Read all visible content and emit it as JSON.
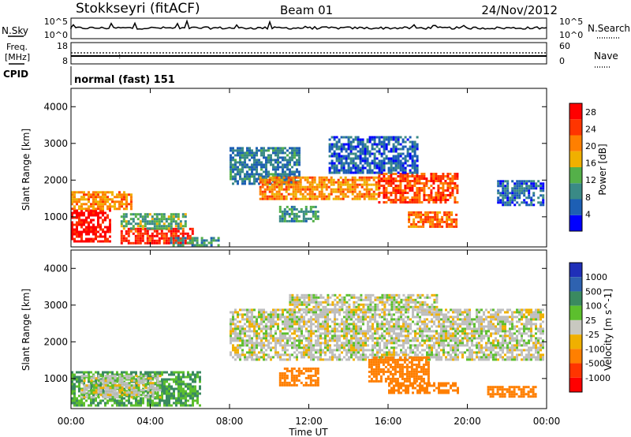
{
  "header": {
    "station": "Stokkseyri (fitACF)",
    "beam": "Beam 01",
    "date": "24/Nov/2012"
  },
  "status_panel": {
    "nsky_label": "N.Sky",
    "nsearch_label": "N.Search",
    "freq_label_line1": "Freq.",
    "freq_label_line2": "[MHz]",
    "nave_label": "Nave",
    "cpid_label": "CPID",
    "left_tick_top": "10^5",
    "left_tick_bottom": "10^0",
    "right_tick_top": "10^5",
    "right_tick_bottom": "10^0",
    "freq_tick_top": "18",
    "freq_tick_bottom": "8",
    "nave_tick_top": "60",
    "nave_tick_bottom": "0",
    "program": "normal (fast) 151"
  },
  "colors": {
    "power_scale": [
      "#0000ff",
      "#1d5fb4",
      "#3a8a86",
      "#54b049",
      "#f0b000",
      "#ff7f00",
      "#ff3500",
      "#ff0000"
    ],
    "velocity_scale": [
      "#1f2fb8",
      "#2e62b0",
      "#3a8a60",
      "#5cbf2d",
      "#c8c8c0",
      "#f0b000",
      "#ff7f00",
      "#ff3500",
      "#ff0000"
    ],
    "ground_scatter": "#bebebe"
  },
  "chart_data": [
    {
      "type": "heatmap",
      "name": "power",
      "xlabel": "Time UT",
      "ylabel": "Slant Range [km]",
      "colorbar_label": "Power [dB]",
      "xlim": [
        0,
        24
      ],
      "ylim": [
        180,
        4500
      ],
      "x_ticks": [
        "00:00",
        "04:00",
        "08:00",
        "12:00",
        "16:00",
        "20:00",
        "00:00"
      ],
      "y_ticks": [
        1000,
        2000,
        3000,
        4000
      ],
      "colorbar_ticks": [
        4,
        8,
        12,
        16,
        20,
        24,
        28
      ],
      "colorbar_range": [
        0,
        30
      ],
      "regions": [
        {
          "t0": 0.0,
          "t1": 2.0,
          "r0": 300,
          "r1": 1200,
          "level": 28
        },
        {
          "t0": 2.5,
          "t1": 6.2,
          "r0": 300,
          "r1": 700,
          "level": 26
        },
        {
          "t0": 2.5,
          "t1": 5.8,
          "r0": 700,
          "r1": 1100,
          "level": 12
        },
        {
          "t0": 5.0,
          "t1": 7.5,
          "r0": 200,
          "r1": 450,
          "level": 10
        },
        {
          "t0": 8.0,
          "t1": 11.5,
          "r0": 1900,
          "r1": 2900,
          "level": 8
        },
        {
          "t0": 9.5,
          "t1": 15.5,
          "r0": 1500,
          "r1": 2100,
          "level": 20
        },
        {
          "t0": 15.5,
          "t1": 19.5,
          "r0": 1400,
          "r1": 2200,
          "level": 24
        },
        {
          "t0": 10.5,
          "t1": 12.5,
          "r0": 850,
          "r1": 1300,
          "level": 10
        },
        {
          "t0": 17.0,
          "t1": 19.5,
          "r0": 750,
          "r1": 1150,
          "level": 22
        },
        {
          "t0": 13.0,
          "t1": 17.5,
          "r0": 2200,
          "r1": 3200,
          "level": 6
        },
        {
          "t0": 21.5,
          "t1": 23.8,
          "r0": 1300,
          "r1": 2000,
          "level": 6
        },
        {
          "t0": 0.0,
          "t1": 3.0,
          "r0": 1200,
          "r1": 1700,
          "level": 20
        }
      ]
    },
    {
      "type": "heatmap",
      "name": "velocity",
      "xlabel": "Time UT",
      "ylabel": "Slant Range [km]",
      "colorbar_label": "Velocity [m s^-1]",
      "xlim": [
        0,
        24
      ],
      "ylim": [
        180,
        4500
      ],
      "x_ticks": [
        "00:00",
        "04:00",
        "08:00",
        "12:00",
        "16:00",
        "20:00",
        "00:00"
      ],
      "y_ticks": [
        1000,
        2000,
        3000,
        4000
      ],
      "colorbar_ticks": [
        "1000",
        "500",
        "100",
        "25",
        "-25",
        "-100",
        "-500",
        "-1000"
      ],
      "regions": [
        {
          "t0": 0.0,
          "t1": 6.5,
          "r0": 250,
          "r1": 1200,
          "level": 100
        },
        {
          "t0": 0.5,
          "t1": 4.5,
          "r0": 500,
          "r1": 1100,
          "level": 0
        },
        {
          "t0": 8.0,
          "t1": 23.8,
          "r0": 1500,
          "r1": 2900,
          "level": 0
        },
        {
          "t0": 11.0,
          "t1": 18.5,
          "r0": 2900,
          "r1": 3300,
          "level": 0
        },
        {
          "t0": 10.5,
          "t1": 12.5,
          "r0": 800,
          "r1": 1300,
          "level": -300
        },
        {
          "t0": 15.0,
          "t1": 18.0,
          "r0": 900,
          "r1": 1600,
          "level": -200
        },
        {
          "t0": 16.0,
          "t1": 19.5,
          "r0": 600,
          "r1": 900,
          "level": -400
        },
        {
          "t0": 21.0,
          "t1": 23.5,
          "r0": 500,
          "r1": 800,
          "level": -150
        }
      ]
    }
  ]
}
